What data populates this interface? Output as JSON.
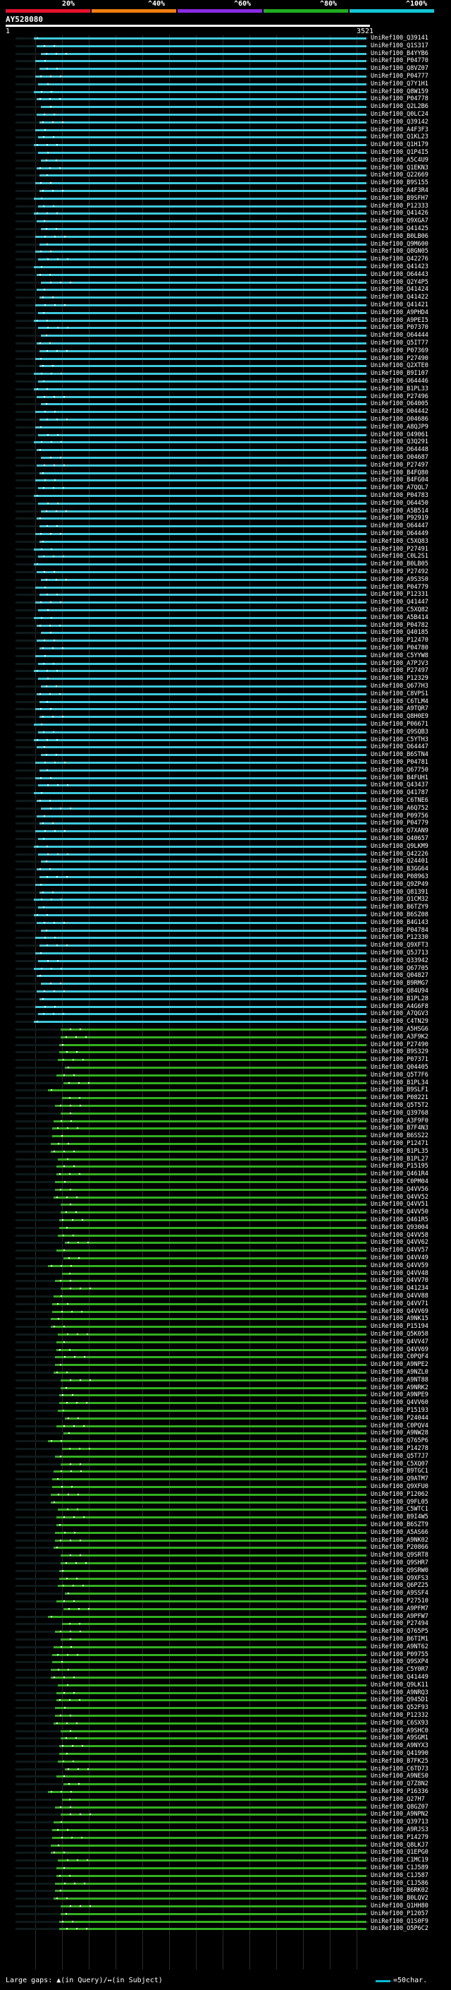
{
  "legend": {
    "segments": [
      {
        "label": "20%",
        "color": "#e8112d"
      },
      {
        "label": "^40%",
        "color": "#f07d10"
      },
      {
        "label": "^60%",
        "color": "#8a2be2"
      },
      {
        "label": "^80%",
        "color": "#1fad1f"
      },
      {
        "label": "^100%",
        "color": "#12c6d6"
      }
    ]
  },
  "query": {
    "name": "AY528080",
    "start": "1",
    "end": "3521"
  },
  "colors": {
    "blue": "#3ec9dc",
    "green": "#33b021",
    "dark": "#0e1a1a"
  },
  "hits": [
    {
      "label": "UniRef100_Q39141",
      "color": "blue"
    },
    {
      "label": "UniRef100_Q1S317",
      "color": "blue"
    },
    {
      "label": "UniRef100_B4YYB6",
      "color": "blue"
    },
    {
      "label": "UniRef100_P04770",
      "color": "blue"
    },
    {
      "label": "UniRef100_Q8VZ07",
      "color": "blue"
    },
    {
      "label": "UniRef100_P04777",
      "color": "blue"
    },
    {
      "label": "UniRef100_Q7Y1H1",
      "color": "blue"
    },
    {
      "label": "UniRef100_Q8W159",
      "color": "blue"
    },
    {
      "label": "UniRef100_P04778",
      "color": "blue"
    },
    {
      "label": "UniRef100_Q2L2B6",
      "color": "blue"
    },
    {
      "label": "UniRef100_Q0LC24",
      "color": "blue"
    },
    {
      "label": "UniRef100_Q39142",
      "color": "blue"
    },
    {
      "label": "UniRef100_A4F3F3",
      "color": "blue"
    },
    {
      "label": "UniRef100_Q1KL23",
      "color": "blue"
    },
    {
      "label": "UniRef100_Q1H179",
      "color": "blue"
    },
    {
      "label": "UniRef100_Q1P4I5",
      "color": "blue"
    },
    {
      "label": "UniRef100_A5C4U9",
      "color": "blue"
    },
    {
      "label": "UniRef100_Q1EKN3",
      "color": "blue"
    },
    {
      "label": "UniRef100_Q22669",
      "color": "blue"
    },
    {
      "label": "UniRef100_B9S155",
      "color": "blue"
    },
    {
      "label": "UniRef100_A4F3R4",
      "color": "blue"
    },
    {
      "label": "UniRef100_B9SFH7",
      "color": "blue"
    },
    {
      "label": "UniRef100_P12333",
      "color": "blue"
    },
    {
      "label": "UniRef100_Q41426",
      "color": "blue"
    },
    {
      "label": "UniRef100_Q9XGA7",
      "color": "blue"
    },
    {
      "label": "UniRef100_Q41425",
      "color": "blue"
    },
    {
      "label": "UniRef100_B0LB06",
      "color": "blue"
    },
    {
      "label": "UniRef100_Q9M600",
      "color": "blue"
    },
    {
      "label": "UniRef100_Q8GN05",
      "color": "blue"
    },
    {
      "label": "UniRef100_Q42276",
      "color": "blue"
    },
    {
      "label": "UniRef100_Q41423",
      "color": "blue"
    },
    {
      "label": "UniRef100_O64443",
      "color": "blue"
    },
    {
      "label": "UniRef100_Q2Y4P5",
      "color": "blue"
    },
    {
      "label": "UniRef100_Q41424",
      "color": "blue"
    },
    {
      "label": "UniRef100_Q41422",
      "color": "blue"
    },
    {
      "label": "UniRef100_Q41421",
      "color": "blue"
    },
    {
      "label": "UniRef100_A9PHD4",
      "color": "blue"
    },
    {
      "label": "UniRef100_A9PEI5",
      "color": "blue"
    },
    {
      "label": "UniRef100_P07370",
      "color": "blue"
    },
    {
      "label": "UniRef100_O64444",
      "color": "blue"
    },
    {
      "label": "UniRef100_Q5IT77",
      "color": "blue"
    },
    {
      "label": "UniRef100_P07369",
      "color": "blue"
    },
    {
      "label": "UniRef100_P27490",
      "color": "blue"
    },
    {
      "label": "UniRef100_Q2XTE0",
      "color": "blue"
    },
    {
      "label": "UniRef100_B9I107",
      "color": "blue"
    },
    {
      "label": "UniRef100_O64446",
      "color": "blue"
    },
    {
      "label": "UniRef100_B1PL33",
      "color": "blue"
    },
    {
      "label": "UniRef100_P27496",
      "color": "blue"
    },
    {
      "label": "UniRef100_O64005",
      "color": "blue"
    },
    {
      "label": "UniRef100_O04442",
      "color": "blue"
    },
    {
      "label": "UniRef100_O04686",
      "color": "blue"
    },
    {
      "label": "UniRef100_A8QJP9",
      "color": "blue"
    },
    {
      "label": "UniRef100_O49061",
      "color": "blue"
    },
    {
      "label": "UniRef100_Q3Q291",
      "color": "blue"
    },
    {
      "label": "UniRef100_O64448",
      "color": "blue"
    },
    {
      "label": "UniRef100_O04687",
      "color": "blue"
    },
    {
      "label": "UniRef100_P27497",
      "color": "blue"
    },
    {
      "label": "UniRef100_B4FQ80",
      "color": "blue"
    },
    {
      "label": "UniRef100_B4FG04",
      "color": "blue"
    },
    {
      "label": "UniRef100_A7QQL7",
      "color": "blue"
    },
    {
      "label": "UniRef100_P04783",
      "color": "blue"
    },
    {
      "label": "UniRef100_O64450",
      "color": "blue"
    },
    {
      "label": "UniRef100_A5B514",
      "color": "blue"
    },
    {
      "label": "UniRef100_P92919",
      "color": "blue"
    },
    {
      "label": "UniRef100_O64447",
      "color": "blue"
    },
    {
      "label": "UniRef100_O64449",
      "color": "blue"
    },
    {
      "label": "UniRef100_C5XQ83",
      "color": "blue"
    },
    {
      "label": "UniRef100_P27491",
      "color": "blue"
    },
    {
      "label": "UniRef100_C0L2S1",
      "color": "blue"
    },
    {
      "label": "UniRef100_B0LB05",
      "color": "blue"
    },
    {
      "label": "UniRef100_P27492",
      "color": "blue"
    },
    {
      "label": "UniRef100_A9S3S0",
      "color": "blue"
    },
    {
      "label": "UniRef100_P04779",
      "color": "blue"
    },
    {
      "label": "UniRef100_P12331",
      "color": "blue"
    },
    {
      "label": "UniRef100_Q41447",
      "color": "blue"
    },
    {
      "label": "UniRef100_C5XQ82",
      "color": "blue"
    },
    {
      "label": "UniRef100_A5B414",
      "color": "blue"
    },
    {
      "label": "UniRef100_P04782",
      "color": "blue"
    },
    {
      "label": "UniRef100_Q40185",
      "color": "blue"
    },
    {
      "label": "UniRef100_P12470",
      "color": "blue"
    },
    {
      "label": "UniRef100_P04780",
      "color": "blue"
    },
    {
      "label": "UniRef100_C5YYW8",
      "color": "blue"
    },
    {
      "label": "UniRef100_A7PJV3",
      "color": "blue"
    },
    {
      "label": "UniRef100_P27497",
      "color": "blue"
    },
    {
      "label": "UniRef100_P12329",
      "color": "blue"
    },
    {
      "label": "UniRef100_Q677H3",
      "color": "blue"
    },
    {
      "label": "UniRef100_C8VPS1",
      "color": "blue"
    },
    {
      "label": "UniRef100_C6TLM4",
      "color": "blue"
    },
    {
      "label": "UniRef100_A9TQR7",
      "color": "blue"
    },
    {
      "label": "UniRef100_Q8H0E9",
      "color": "blue"
    },
    {
      "label": "UniRef100_P06671",
      "color": "blue"
    },
    {
      "label": "UniRef100_Q9SQB3",
      "color": "blue"
    },
    {
      "label": "UniRef100_C5YTH3",
      "color": "blue"
    },
    {
      "label": "UniRef100_O64447",
      "color": "blue"
    },
    {
      "label": "UniRef100_B6STN4",
      "color": "blue"
    },
    {
      "label": "UniRef100_P04781",
      "color": "blue"
    },
    {
      "label": "UniRef100_Q67750",
      "color": "blue"
    },
    {
      "label": "UniRef100_B4FUH1",
      "color": "blue"
    },
    {
      "label": "UniRef100_Q43437",
      "color": "blue"
    },
    {
      "label": "UniRef100_Q41787",
      "color": "blue"
    },
    {
      "label": "UniRef100_C6TNE6",
      "color": "blue"
    },
    {
      "label": "UniRef100_A6Q752",
      "color": "blue"
    },
    {
      "label": "UniRef100_P09756",
      "color": "blue"
    },
    {
      "label": "UniRef100_P04779",
      "color": "blue"
    },
    {
      "label": "UniRef100_Q7XAN9",
      "color": "blue"
    },
    {
      "label": "UniRef100_Q40657",
      "color": "blue"
    },
    {
      "label": "UniRef100_Q9LKM9",
      "color": "blue"
    },
    {
      "label": "UniRef100_Q42226",
      "color": "blue"
    },
    {
      "label": "UniRef100_Q24401",
      "color": "blue"
    },
    {
      "label": "UniRef100_B3GG64",
      "color": "blue"
    },
    {
      "label": "UniRef100_P08963",
      "color": "blue"
    },
    {
      "label": "UniRef100_Q9ZP49",
      "color": "blue"
    },
    {
      "label": "UniRef100_Q81391",
      "color": "blue"
    },
    {
      "label": "UniRef100_Q1CM32",
      "color": "blue"
    },
    {
      "label": "UniRef100_B6TZY9",
      "color": "blue"
    },
    {
      "label": "UniRef100_B6SZ08",
      "color": "blue"
    },
    {
      "label": "UniRef100_B4G143",
      "color": "blue"
    },
    {
      "label": "UniRef100_P04784",
      "color": "blue"
    },
    {
      "label": "UniRef100_P12330",
      "color": "blue"
    },
    {
      "label": "UniRef100_Q9XFT3",
      "color": "blue"
    },
    {
      "label": "UniRef100_Q5J713",
      "color": "blue"
    },
    {
      "label": "UniRef100_Q33942",
      "color": "blue"
    },
    {
      "label": "UniRef100_Q67705",
      "color": "blue"
    },
    {
      "label": "UniRef100_Q04827",
      "color": "blue"
    },
    {
      "label": "UniRef100_B9RMG7",
      "color": "blue"
    },
    {
      "label": "UniRef100_Q84U94",
      "color": "blue"
    },
    {
      "label": "UniRef100_B1PL28",
      "color": "blue"
    },
    {
      "label": "UniRef100_A4G6F8",
      "color": "blue"
    },
    {
      "label": "UniRef100_A7QGV3",
      "color": "blue"
    },
    {
      "label": "UniRef100_C4TN29",
      "color": "blue"
    },
    {
      "label": "UniRef100_A5HSG6",
      "color": "green"
    },
    {
      "label": "UniRef100_A3F9K2",
      "color": "green"
    },
    {
      "label": "UniRef100_P27490",
      "color": "green"
    },
    {
      "label": "UniRef100_B9S329",
      "color": "green"
    },
    {
      "label": "UniRef100_P07371",
      "color": "green"
    },
    {
      "label": "UniRef100_Q04405",
      "color": "green"
    },
    {
      "label": "UniRef100_Q5T7F6",
      "color": "green"
    },
    {
      "label": "UniRef100_B1PL34",
      "color": "green"
    },
    {
      "label": "UniRef100_B9SLF1",
      "color": "green"
    },
    {
      "label": "UniRef100_P08221",
      "color": "green"
    },
    {
      "label": "UniRef100_Q5T5T2",
      "color": "green"
    },
    {
      "label": "UniRef100_Q39768",
      "color": "green"
    },
    {
      "label": "UniRef100_A3F9F0",
      "color": "green"
    },
    {
      "label": "UniRef100_B7F4N3",
      "color": "green"
    },
    {
      "label": "UniRef100_B6SS22",
      "color": "green"
    },
    {
      "label": "UniRef100_P12471",
      "color": "green"
    },
    {
      "label": "UniRef100_B1PL35",
      "color": "green"
    },
    {
      "label": "UniRef100_B1PL27",
      "color": "green"
    },
    {
      "label": "UniRef100_P15195",
      "color": "green"
    },
    {
      "label": "UniRef100_Q461R4",
      "color": "green"
    },
    {
      "label": "UniRef100_C0PM04",
      "color": "green"
    },
    {
      "label": "UniRef100_Q4VV56",
      "color": "green"
    },
    {
      "label": "UniRef100_Q4VV52",
      "color": "green"
    },
    {
      "label": "UniRef100_Q4VV51",
      "color": "green"
    },
    {
      "label": "UniRef100_Q4VV50",
      "color": "green"
    },
    {
      "label": "UniRef100_Q461R5",
      "color": "green"
    },
    {
      "label": "UniRef100_Q93004",
      "color": "green"
    },
    {
      "label": "UniRef100_Q4VV58",
      "color": "green"
    },
    {
      "label": "UniRef100_Q4VV62",
      "color": "green"
    },
    {
      "label": "UniRef100_Q4VV57",
      "color": "green"
    },
    {
      "label": "UniRef100_Q4VV49",
      "color": "green"
    },
    {
      "label": "UniRef100_Q4VV59",
      "color": "green"
    },
    {
      "label": "UniRef100_Q4VV48",
      "color": "green"
    },
    {
      "label": "UniRef100_Q4VV70",
      "color": "green"
    },
    {
      "label": "UniRef100_Q41234",
      "color": "green"
    },
    {
      "label": "UniRef100_Q4VV88",
      "color": "green"
    },
    {
      "label": "UniRef100_Q4VV71",
      "color": "green"
    },
    {
      "label": "UniRef100_Q4VV69",
      "color": "green"
    },
    {
      "label": "UniRef100_A9NK15",
      "color": "green"
    },
    {
      "label": "UniRef100_P15194",
      "color": "green"
    },
    {
      "label": "UniRef100_Q5K058",
      "color": "green"
    },
    {
      "label": "UniRef100_Q4VV47",
      "color": "green"
    },
    {
      "label": "UniRef100_Q4VV69",
      "color": "green"
    },
    {
      "label": "UniRef100_C0PQF4",
      "color": "green"
    },
    {
      "label": "UniRef100_A9NPE2",
      "color": "green"
    },
    {
      "label": "UniRef100_A9NZL0",
      "color": "green"
    },
    {
      "label": "UniRef100_A9NT88",
      "color": "green"
    },
    {
      "label": "UniRef100_A9NRK2",
      "color": "green"
    },
    {
      "label": "UniRef100_A9NPE9",
      "color": "green"
    },
    {
      "label": "UniRef100_Q4VV60",
      "color": "green"
    },
    {
      "label": "UniRef100_P15193",
      "color": "green"
    },
    {
      "label": "UniRef100_P24044",
      "color": "green"
    },
    {
      "label": "UniRef100_C0PQV4",
      "color": "green"
    },
    {
      "label": "UniRef100_A9NW28",
      "color": "green"
    },
    {
      "label": "UniRef100_Q765P6",
      "color": "green"
    },
    {
      "label": "UniRef100_P14278",
      "color": "green"
    },
    {
      "label": "UniRef100_Q5T7J7",
      "color": "green"
    },
    {
      "label": "UniRef100_C5XQ07",
      "color": "green"
    },
    {
      "label": "UniRef100_B9TGC1",
      "color": "green"
    },
    {
      "label": "UniRef100_Q9ATM7",
      "color": "green"
    },
    {
      "label": "UniRef100_Q9XFU0",
      "color": "green"
    },
    {
      "label": "UniRef100_P12062",
      "color": "green"
    },
    {
      "label": "UniRef100_Q9FL05",
      "color": "green"
    },
    {
      "label": "UniRef100_C5WTC1",
      "color": "green"
    },
    {
      "label": "UniRef100_B9I4W5",
      "color": "green"
    },
    {
      "label": "UniRef100_B6SZT9",
      "color": "green"
    },
    {
      "label": "UniRef100_A5AS66",
      "color": "green"
    },
    {
      "label": "UniRef100_A9NK02",
      "color": "green"
    },
    {
      "label": "UniRef100_P20866",
      "color": "green"
    },
    {
      "label": "UniRef100_Q9SRT8",
      "color": "green"
    },
    {
      "label": "UniRef100_Q9SHR7",
      "color": "green"
    },
    {
      "label": "UniRef100_Q9SRW0",
      "color": "green"
    },
    {
      "label": "UniRef100_Q9XFS3",
      "color": "green"
    },
    {
      "label": "UniRef100_Q6PZ25",
      "color": "green"
    },
    {
      "label": "UniRef100_A9SSF4",
      "color": "green"
    },
    {
      "label": "UniRef100_P27510",
      "color": "green"
    },
    {
      "label": "UniRef100_A9PFM7",
      "color": "green"
    },
    {
      "label": "UniRef100_A9PFW7",
      "color": "green"
    },
    {
      "label": "UniRef100_P27494",
      "color": "green"
    },
    {
      "label": "UniRef100_Q765P5",
      "color": "green"
    },
    {
      "label": "UniRef100_B6TIM1",
      "color": "green"
    },
    {
      "label": "UniRef100_A9NT62",
      "color": "green"
    },
    {
      "label": "UniRef100_P09755",
      "color": "green"
    },
    {
      "label": "UniRef100_Q9SXP4",
      "color": "green"
    },
    {
      "label": "UniRef100_C5Y0R7",
      "color": "green"
    },
    {
      "label": "UniRef100_Q41449",
      "color": "green"
    },
    {
      "label": "UniRef100_Q9LK11",
      "color": "green"
    },
    {
      "label": "UniRef100_A9NRQ3",
      "color": "green"
    },
    {
      "label": "UniRef100_Q945D1",
      "color": "green"
    },
    {
      "label": "UniRef100_Q52F93",
      "color": "green"
    },
    {
      "label": "UniRef100_P12332",
      "color": "green"
    },
    {
      "label": "UniRef100_C6SX93",
      "color": "green"
    },
    {
      "label": "UniRef100_A9SHC0",
      "color": "green"
    },
    {
      "label": "UniRef100_A9SGM1",
      "color": "green"
    },
    {
      "label": "UniRef100_A9NYX3",
      "color": "green"
    },
    {
      "label": "UniRef100_Q41990",
      "color": "green"
    },
    {
      "label": "UniRef100_B7FK25",
      "color": "green"
    },
    {
      "label": "UniRef100_C6TD73",
      "color": "green"
    },
    {
      "label": "UniRef100_A9NES0",
      "color": "green"
    },
    {
      "label": "UniRef100_Q7Z8N2",
      "color": "green"
    },
    {
      "label": "UniRef100_P16336",
      "color": "green"
    },
    {
      "label": "UniRef100_Q27H7",
      "color": "green"
    },
    {
      "label": "UniRef100_Q8GZ07",
      "color": "green"
    },
    {
      "label": "UniRef100_A9NPN2",
      "color": "green"
    },
    {
      "label": "UniRef100_Q39713",
      "color": "green"
    },
    {
      "label": "UniRef100_A9RJS3",
      "color": "green"
    },
    {
      "label": "UniRef100_P14279",
      "color": "green"
    },
    {
      "label": "UniRef100_Q8LKJ7",
      "color": "green"
    },
    {
      "label": "UniRef100_Q1EPG0",
      "color": "green"
    },
    {
      "label": "UniRef100_C1MC19",
      "color": "green"
    },
    {
      "label": "UniRef100_C1J589",
      "color": "green"
    },
    {
      "label": "UniRef100_C1J587",
      "color": "green"
    },
    {
      "label": "UniRef100_C1J586",
      "color": "green"
    },
    {
      "label": "UniRef100_B6RK02",
      "color": "green"
    },
    {
      "label": "UniRef100_B0LQV2",
      "color": "green"
    },
    {
      "label": "UniRef100_Q1HH80",
      "color": "green"
    },
    {
      "label": "UniRef100_P12057",
      "color": "green"
    },
    {
      "label": "UniRef100_Q1S0F9",
      "color": "green"
    },
    {
      "label": "UniRef100_O5P6C2",
      "color": "green"
    }
  ],
  "footer": {
    "gaps_text": "Large gaps: ▲(in Query)/↔(in Subject)",
    "scale_text": "=50char."
  }
}
